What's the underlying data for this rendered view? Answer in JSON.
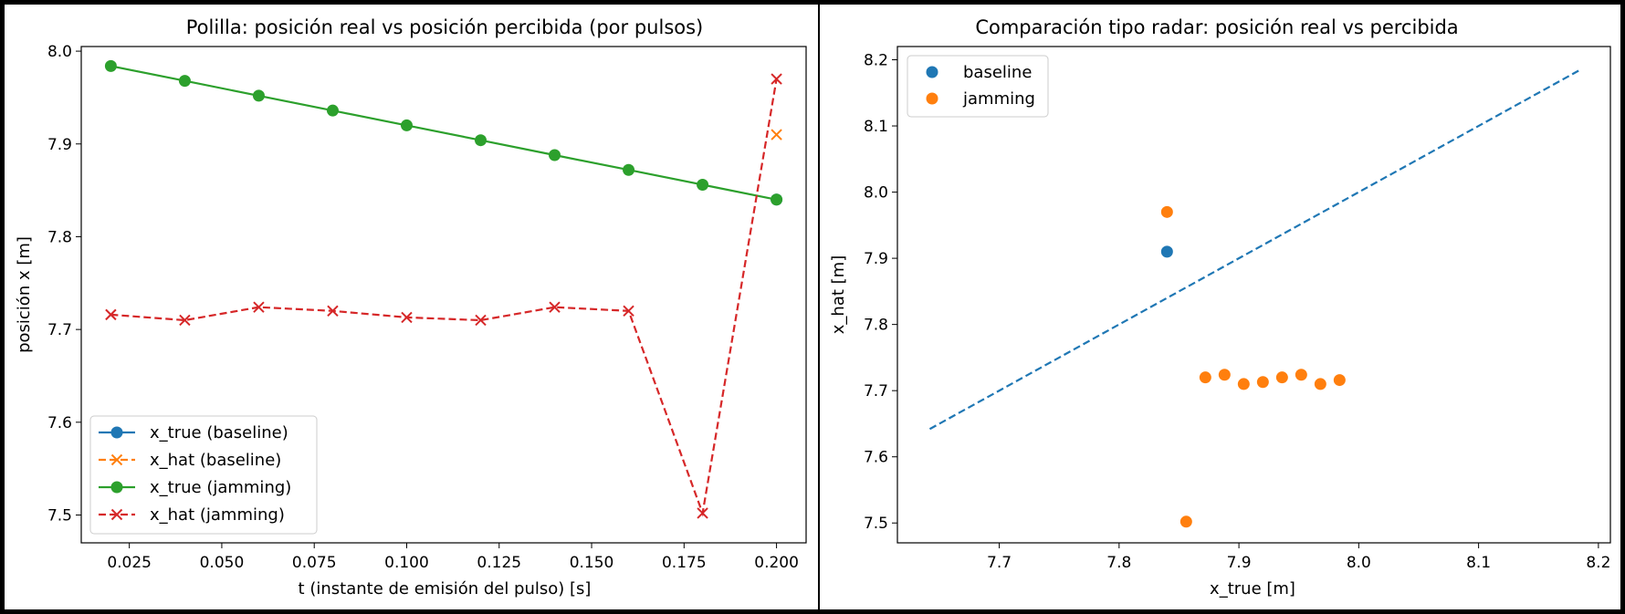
{
  "chart_data": [
    {
      "type": "line",
      "title": "Polilla: posición real vs posición percibida (por pulsos)",
      "xlabel": "t (instante de emisión del pulso) [s]",
      "ylabel": "posición x [m]",
      "xlim": [
        0.012,
        0.208
      ],
      "ylim": [
        7.47,
        8.005
      ],
      "xticks": [
        0.025,
        0.05,
        0.075,
        0.1,
        0.125,
        0.15,
        0.175,
        0.2
      ],
      "xtick_labels": [
        "0.025",
        "0.050",
        "0.075",
        "0.100",
        "0.125",
        "0.150",
        "0.175",
        "0.200"
      ],
      "yticks": [
        7.5,
        7.6,
        7.7,
        7.8,
        7.9,
        8.0
      ],
      "ytick_labels": [
        "7.5",
        "7.6",
        "7.7",
        "7.8",
        "7.9",
        "8.0"
      ],
      "x": [
        0.02,
        0.04,
        0.06,
        0.08,
        0.1,
        0.12,
        0.14,
        0.16,
        0.18,
        0.2
      ],
      "series": [
        {
          "name": "x_true (baseline)",
          "color": "#1f77b4",
          "style": "solid",
          "marker": "circle",
          "points": [
            [
              0.2,
              7.84
            ]
          ]
        },
        {
          "name": "x_hat (baseline)",
          "color": "#ff7f0e",
          "style": "dashed",
          "marker": "x",
          "points": [
            [
              0.2,
              7.91
            ]
          ]
        },
        {
          "name": "x_true (jamming)",
          "color": "#2ca02c",
          "style": "solid",
          "marker": "circle",
          "values": [
            7.984,
            7.968,
            7.952,
            7.936,
            7.92,
            7.904,
            7.888,
            7.872,
            7.856,
            7.84
          ]
        },
        {
          "name": "x_hat (jamming)",
          "color": "#d62728",
          "style": "dashed",
          "marker": "x",
          "values": [
            7.716,
            7.71,
            7.724,
            7.72,
            7.713,
            7.71,
            7.724,
            7.72,
            7.502,
            7.97
          ]
        }
      ],
      "legend": "lower-left"
    },
    {
      "type": "scatter",
      "title": "Comparación tipo radar: posición real vs percibida",
      "xlabel": "x_true [m]",
      "ylabel": "x_hat [m]",
      "xlim": [
        7.615,
        8.21
      ],
      "ylim": [
        7.47,
        8.22
      ],
      "xticks": [
        7.7,
        7.8,
        7.9,
        8.0,
        8.1,
        8.2
      ],
      "xtick_labels": [
        "7.7",
        "7.8",
        "7.9",
        "8.0",
        "8.1",
        "8.2"
      ],
      "yticks": [
        7.5,
        7.6,
        7.7,
        7.8,
        7.9,
        8.0,
        8.1,
        8.2
      ],
      "ytick_labels": [
        "7.5",
        "7.6",
        "7.7",
        "7.8",
        "7.9",
        "8.0",
        "8.1",
        "8.2"
      ],
      "series": [
        {
          "name": "baseline",
          "color": "#1f77b4",
          "points": [
            [
              7.84,
              7.91
            ]
          ]
        },
        {
          "name": "jamming",
          "color": "#ff7f0e",
          "points": [
            [
              7.984,
              7.716
            ],
            [
              7.968,
              7.71
            ],
            [
              7.952,
              7.724
            ],
            [
              7.936,
              7.72
            ],
            [
              7.92,
              7.713
            ],
            [
              7.904,
              7.71
            ],
            [
              7.888,
              7.724
            ],
            [
              7.872,
              7.72
            ],
            [
              7.856,
              7.502
            ],
            [
              7.84,
              7.97
            ]
          ]
        }
      ],
      "reference_line": {
        "from": [
          7.642,
          7.642
        ],
        "to": [
          8.184,
          8.184
        ],
        "color": "#1f77b4",
        "style": "dashed"
      },
      "legend": "upper-left"
    }
  ]
}
